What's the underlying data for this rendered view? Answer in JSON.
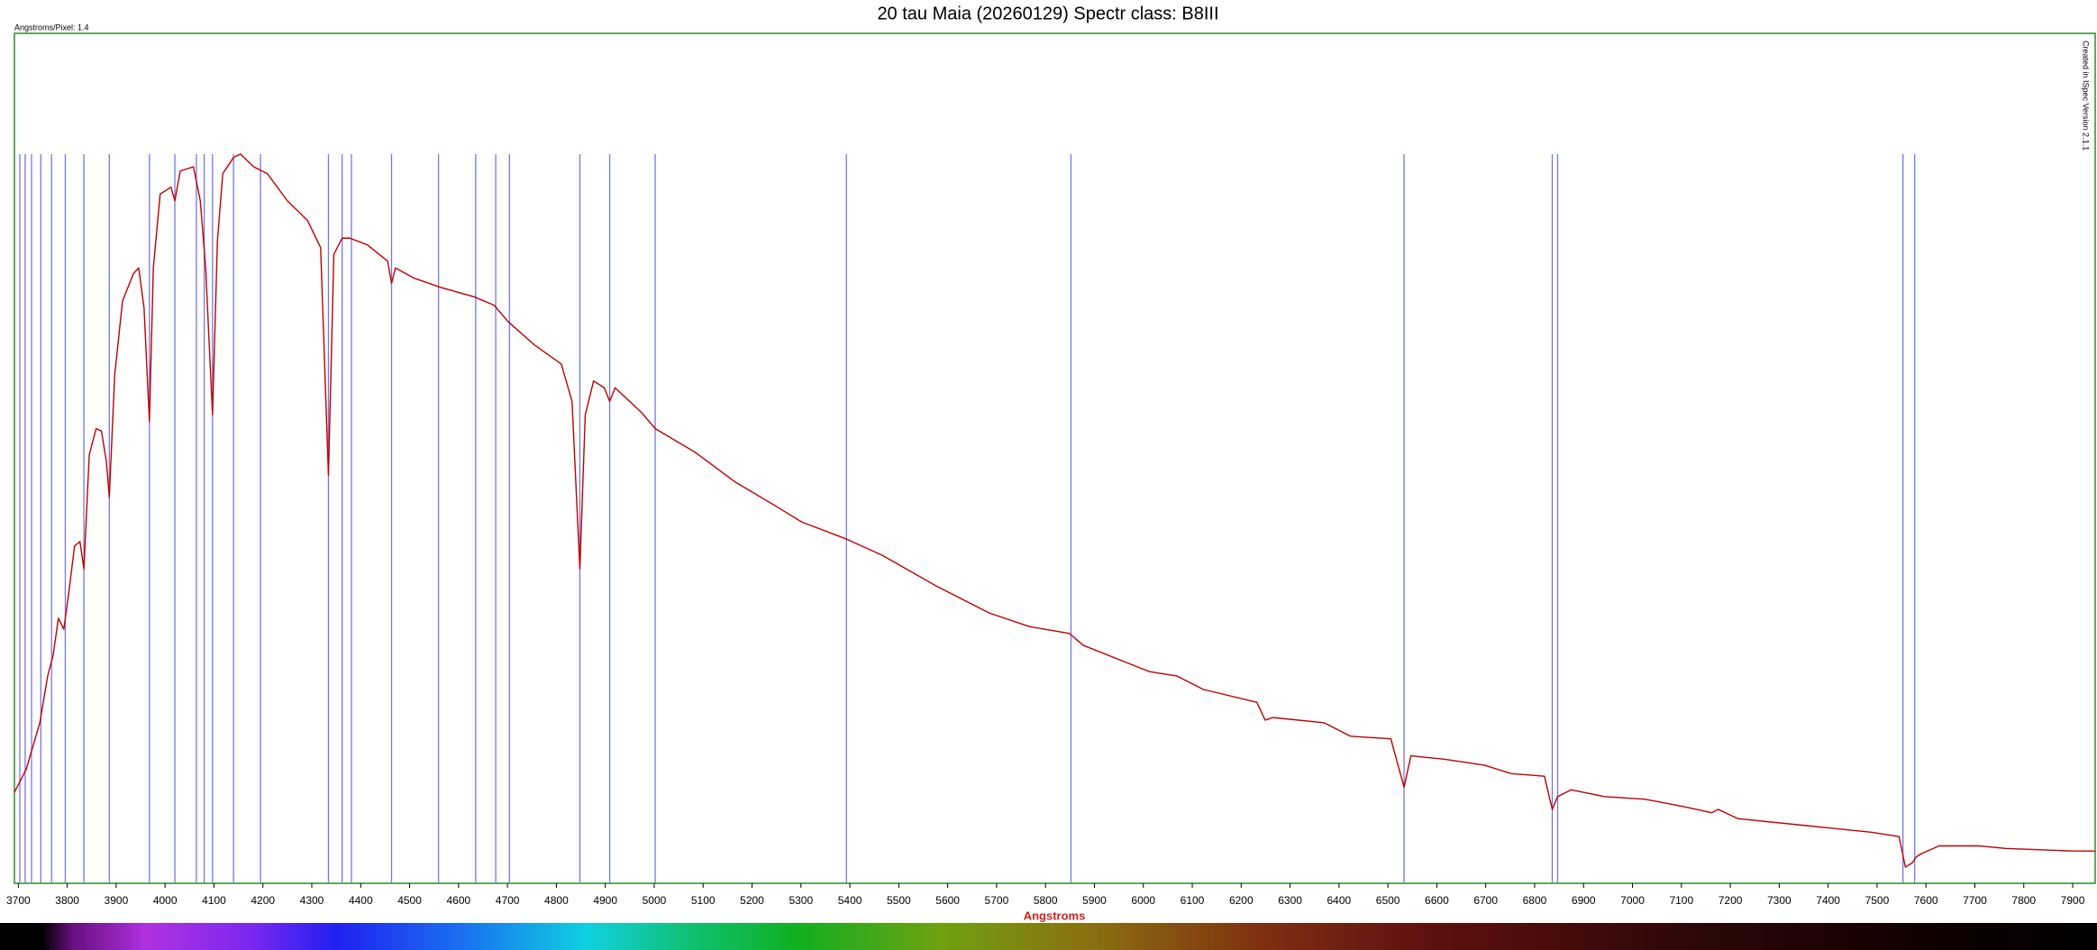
{
  "chart_data": {
    "type": "line",
    "title": "20 tau Maia  (20260129) Spectr class: B8III",
    "corner_note": "Angstroms/Pixel: 1.4",
    "side_note": "Created in ISpec Version 2.1.1",
    "x_label": "Angstroms",
    "xlim": [
      3692,
      7946
    ],
    "ylim": [
      0,
      1
    ],
    "xticks": [
      3700,
      3800,
      3900,
      4000,
      4100,
      4200,
      4300,
      4400,
      4500,
      4600,
      4700,
      4800,
      4900,
      5000,
      5100,
      5200,
      5300,
      5400,
      5500,
      5600,
      5700,
      5800,
      5900,
      6000,
      6100,
      6200,
      6300,
      6400,
      6500,
      6600,
      6700,
      6800,
      6900,
      7000,
      7100,
      7200,
      7300,
      7400,
      7500,
      7600,
      7700,
      7800,
      7900
    ],
    "grid": false,
    "spectrum": {
      "color": "#c00000",
      "x": [
        3692,
        3716,
        3744,
        3760,
        3771,
        3782,
        3793,
        3804,
        3815,
        3826,
        3834,
        3845,
        3859,
        3870,
        3880,
        3886,
        3897,
        3913,
        3935,
        3946,
        3957,
        3968,
        3976,
        3990,
        4012,
        4020,
        4031,
        4058,
        4072,
        4083,
        4097,
        4107,
        4118,
        4140,
        4154,
        4181,
        4209,
        4250,
        4291,
        4318,
        4334,
        4345,
        4362,
        4378,
        4414,
        4455,
        4463,
        4471,
        4509,
        4564,
        4632,
        4673,
        4701,
        4756,
        4810,
        4832,
        4848,
        4859,
        4876,
        4898,
        4909,
        4920,
        4974,
        5002,
        5084,
        5166,
        5248,
        5302,
        5393,
        5466,
        5576,
        5685,
        5767,
        5849,
        5877,
        5986,
        6013,
        6068,
        6123,
        6232,
        6249,
        6265,
        6369,
        6424,
        6506,
        6533,
        6547,
        6615,
        6697,
        6752,
        6820,
        6836,
        6847,
        6875,
        6943,
        7025,
        7107,
        7162,
        7175,
        7216,
        7353,
        7490,
        7545,
        7558,
        7572,
        7580,
        7591,
        7627,
        7709,
        7763,
        7900,
        7946
      ],
      "y": [
        0.107,
        0.134,
        0.189,
        0.244,
        0.268,
        0.312,
        0.299,
        0.346,
        0.397,
        0.402,
        0.37,
        0.504,
        0.535,
        0.532,
        0.496,
        0.454,
        0.598,
        0.685,
        0.717,
        0.724,
        0.677,
        0.543,
        0.724,
        0.811,
        0.819,
        0.803,
        0.838,
        0.843,
        0.803,
        0.724,
        0.551,
        0.756,
        0.835,
        0.854,
        0.858,
        0.843,
        0.835,
        0.803,
        0.78,
        0.748,
        0.48,
        0.74,
        0.759,
        0.759,
        0.751,
        0.732,
        0.706,
        0.724,
        0.712,
        0.701,
        0.69,
        0.68,
        0.661,
        0.633,
        0.611,
        0.567,
        0.37,
        0.551,
        0.591,
        0.583,
        0.567,
        0.583,
        0.554,
        0.535,
        0.507,
        0.472,
        0.444,
        0.425,
        0.405,
        0.386,
        0.35,
        0.318,
        0.302,
        0.294,
        0.28,
        0.255,
        0.249,
        0.244,
        0.228,
        0.213,
        0.192,
        0.195,
        0.189,
        0.173,
        0.17,
        0.113,
        0.15,
        0.146,
        0.139,
        0.129,
        0.126,
        0.087,
        0.102,
        0.11,
        0.102,
        0.099,
        0.09,
        0.083,
        0.087,
        0.076,
        0.068,
        0.06,
        0.055,
        0.019,
        0.024,
        0.031,
        0.035,
        0.044,
        0.044,
        0.041,
        0.038,
        0.038
      ]
    },
    "lines": {
      "color": "#7777e0",
      "x": [
        3703,
        3714,
        3727,
        3746,
        3768,
        3796,
        3834,
        3886,
        3968,
        4020,
        4064,
        4080,
        4097,
        4140,
        4195,
        4334,
        4362,
        4381,
        4463,
        4559,
        4635,
        4676,
        4704,
        4848,
        4909,
        5002,
        5393,
        5852,
        6533,
        6836,
        6847,
        7553,
        7577
      ]
    }
  }
}
